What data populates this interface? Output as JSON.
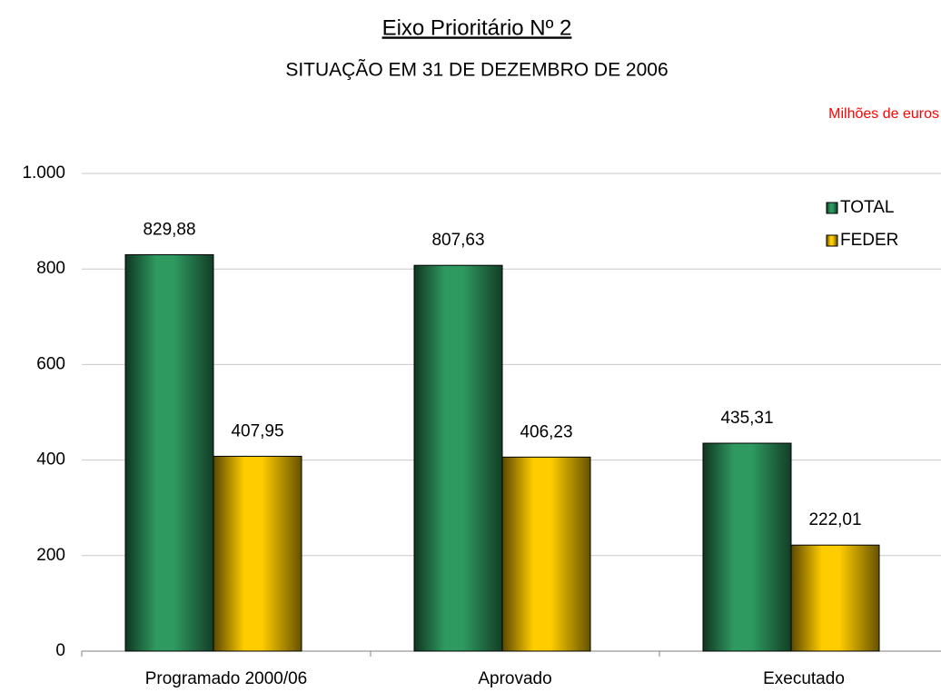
{
  "chart_data": {
    "type": "bar",
    "title": "Eixo Prioritário Nº 2",
    "subtitle": "SITUAÇÃO EM 31 DE DEZEMBRO DE 2006",
    "annotation": "Milhões de euros",
    "categories": [
      "Programado 2000/06",
      "Aprovado",
      "Executado"
    ],
    "series": [
      {
        "name": "TOTAL",
        "color": "#2e9a60",
        "values": [
          829.88,
          807.63,
          435.31
        ],
        "value_labels": [
          "829,88",
          "807,63",
          "435,31"
        ]
      },
      {
        "name": "FEDER",
        "color": "#ffcc00",
        "values": [
          407.95,
          406.23,
          222.01
        ],
        "value_labels": [
          "407,95",
          "406,23",
          "222,01"
        ]
      }
    ],
    "ylim": [
      0,
      1000
    ],
    "yticks": [
      0,
      200,
      400,
      600,
      800,
      {
        "value": 1000,
        "label": "1.000"
      }
    ],
    "grid": true,
    "legend": "top-right"
  }
}
